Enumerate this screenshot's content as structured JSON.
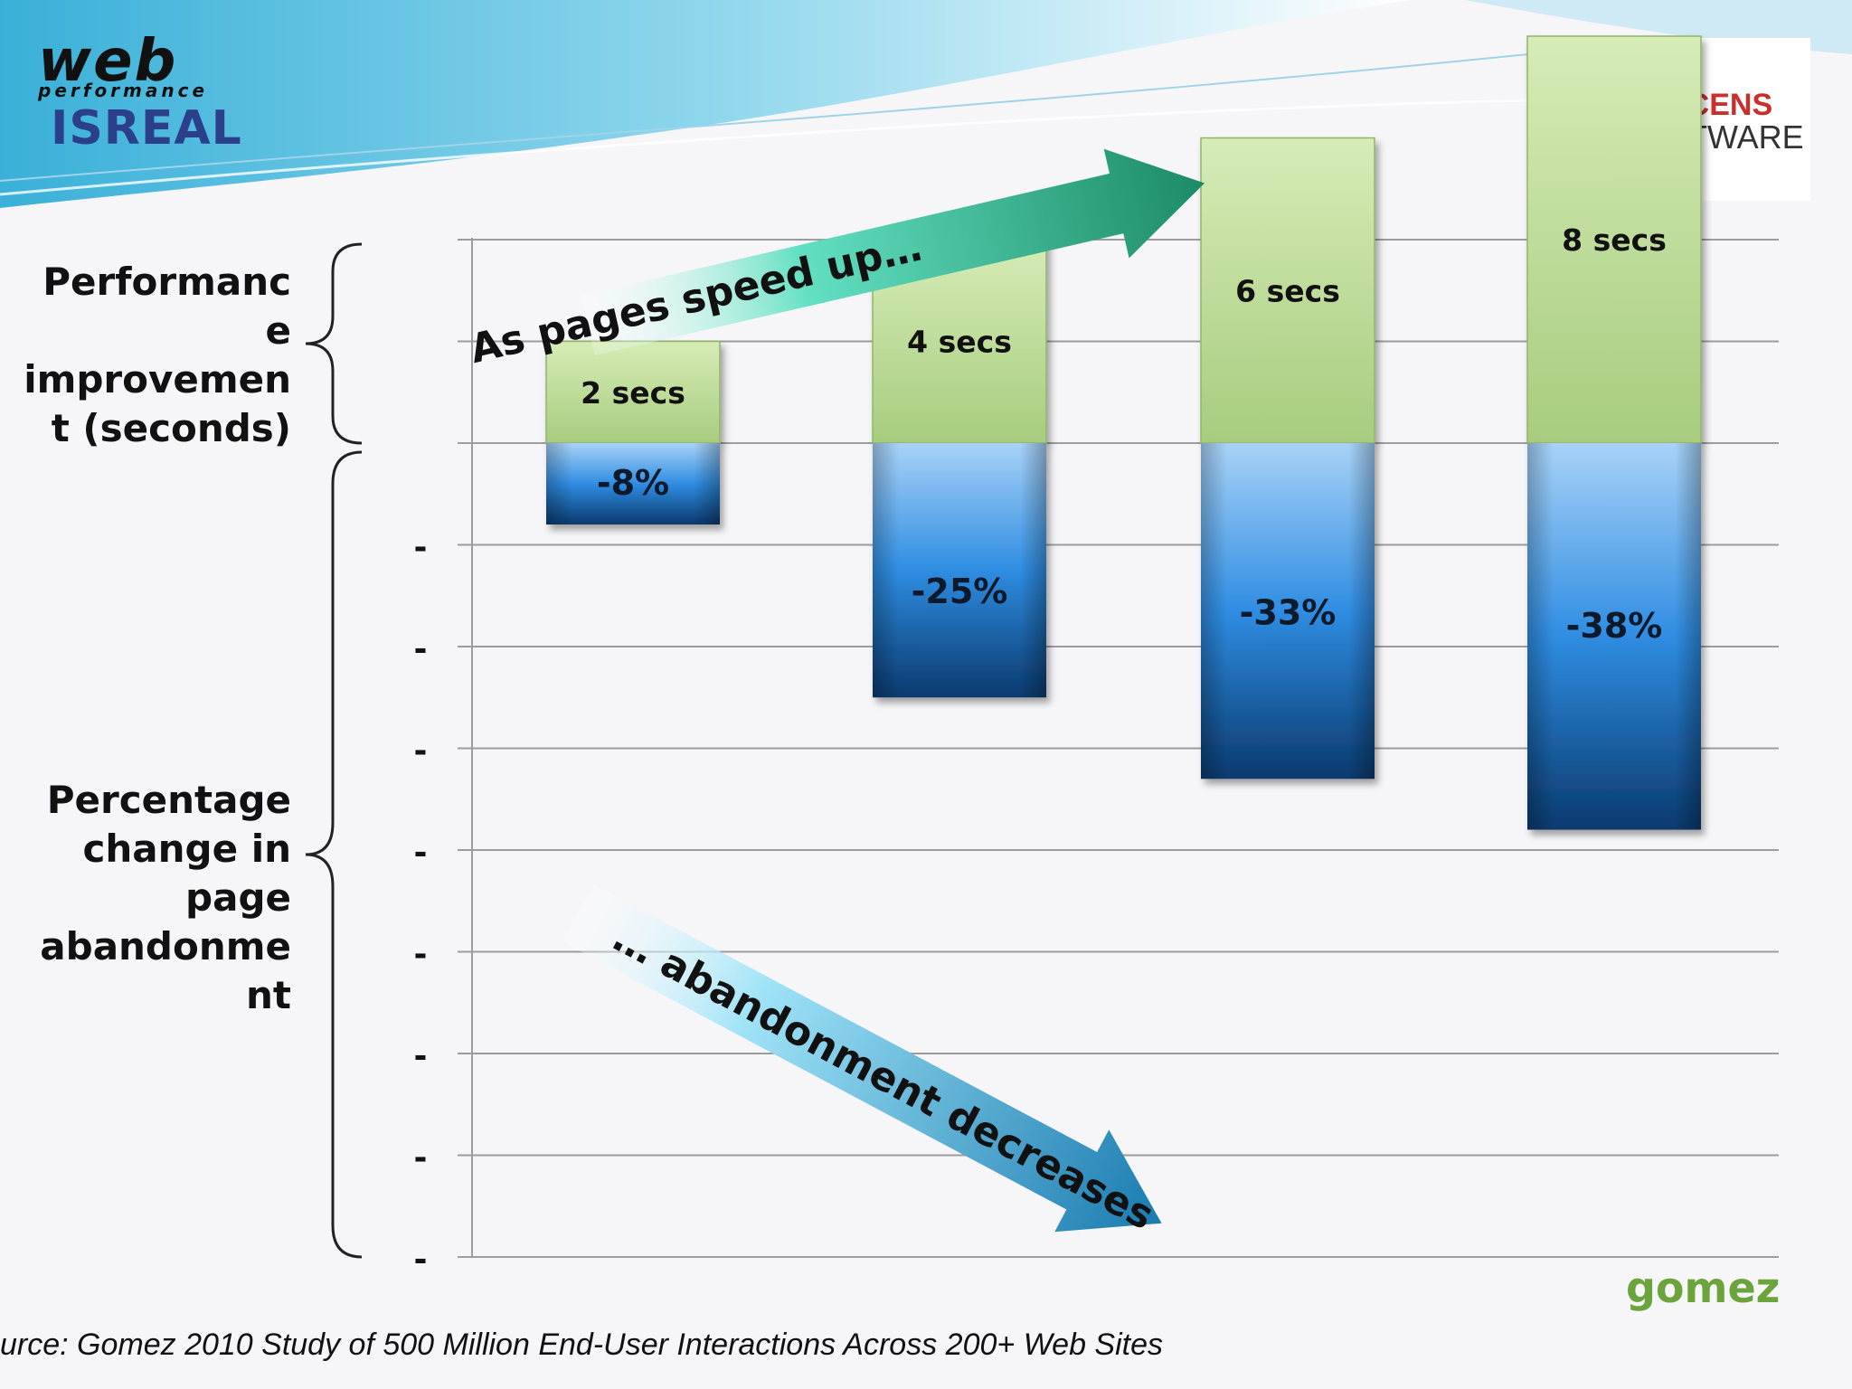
{
  "logos": {
    "web": "web",
    "web_sub": "performance",
    "web_country": "ISREAL",
    "efficens_top": "EFFICENS",
    "efficens_bottom": "SOFTWARE",
    "gomez": "gomez"
  },
  "axis_labels": {
    "top": "Performanc\ne\nimprovemen\nt (seconds)",
    "bottom": "Percentage\nchange in\npage\nabandonme\nnt"
  },
  "annotations": {
    "speed_up": "As pages speed up…",
    "abandonment": "… abandonment decreases"
  },
  "source": "urce:  Gomez 2010 Study of 500 Million End-User Interactions Across 200+ Web Sites",
  "tick_marks": [
    "-",
    "-",
    "-",
    "-",
    "-",
    "-",
    "-",
    "-"
  ],
  "colors": {
    "bar_blue_top": "#a8d2f7",
    "bar_blue_mid": "#2f8de2",
    "bar_blue_bottom": "#0a3a6e",
    "bar_green_top": "#d6ecb6",
    "bar_green_bottom": "#a7cc7f",
    "arrow_green": "#1d8a66",
    "arrow_blue": "#1a7bb0",
    "header_blue": "#3ab0d8"
  },
  "chart_data": {
    "type": "bar",
    "categories": [
      "2 secs",
      "4 secs",
      "6 secs",
      "8 secs"
    ],
    "series": [
      {
        "name": "Performance improvement (seconds)",
        "values": [
          2,
          4,
          6,
          8
        ]
      },
      {
        "name": "Percentage change in page abandonment",
        "values": [
          -8,
          -25,
          -33,
          -38
        ]
      }
    ],
    "value_labels": [
      "-8%",
      "-25%",
      "-33%",
      "-38%"
    ],
    "ylim_seconds": [
      0,
      10
    ],
    "ylim_percent": [
      -40,
      0
    ],
    "grid": true
  }
}
